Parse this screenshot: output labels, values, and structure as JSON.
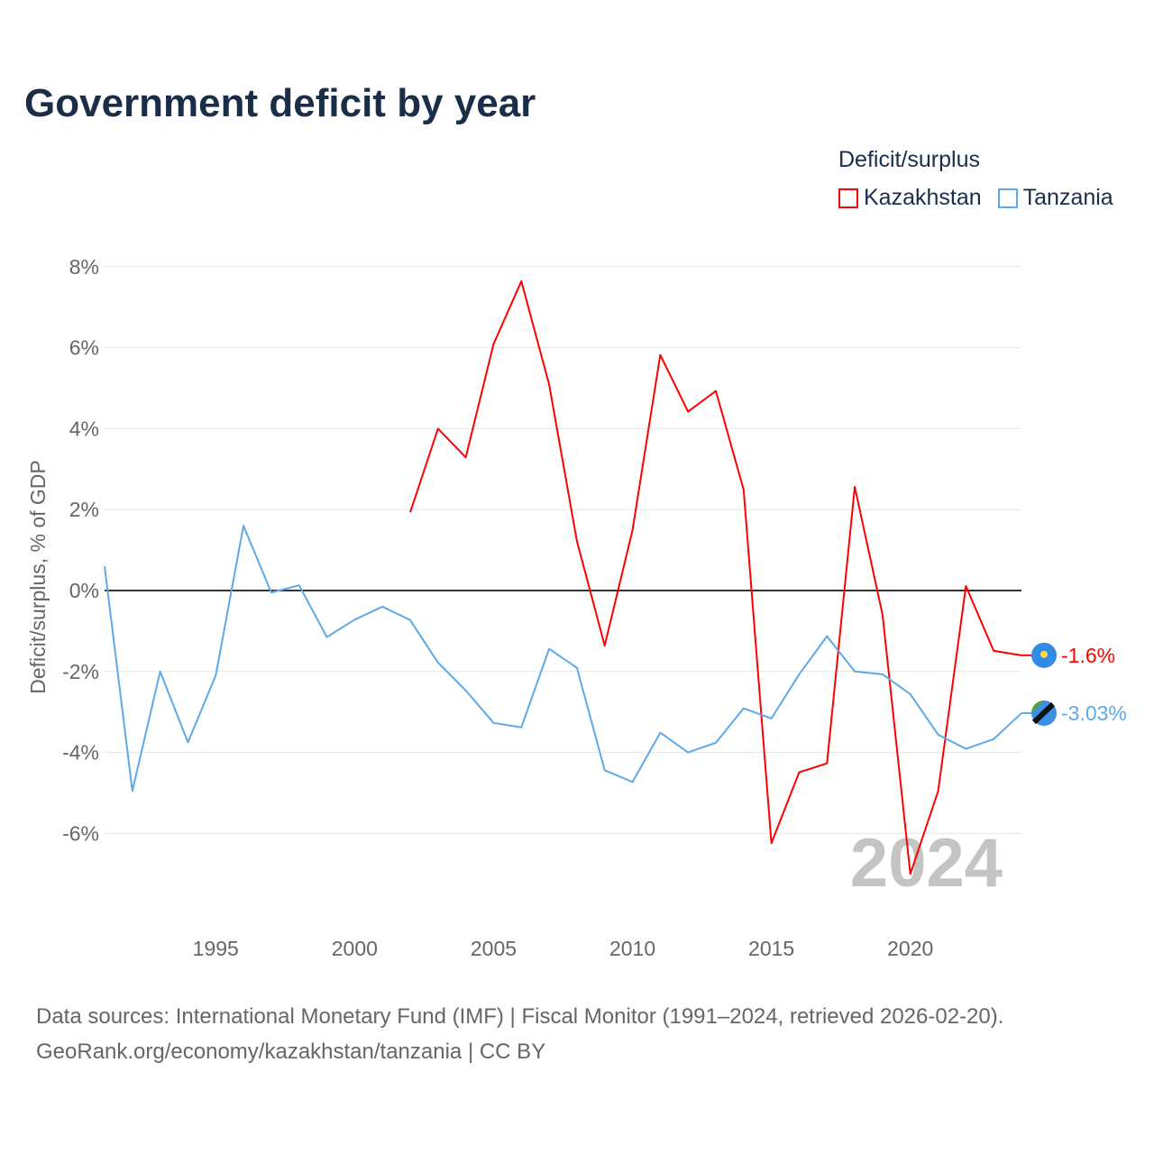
{
  "chart_data": {
    "type": "line",
    "title": "Government deficit by year",
    "ylabel": "Deficit/surplus, % of GDP",
    "xlabel": "",
    "ylim": [
      -8.5,
      8.5
    ],
    "xlim": [
      1991,
      2024
    ],
    "yticks": [
      8,
      6,
      4,
      2,
      0,
      -2,
      -4,
      -6
    ],
    "ytick_labels": [
      "8%",
      "6%",
      "4%",
      "2%",
      "0%",
      "-2%",
      "-4%",
      "-6%"
    ],
    "xticks": [
      1995,
      2000,
      2005,
      2010,
      2015,
      2020
    ],
    "xtick_labels": [
      "1995",
      "2000",
      "2005",
      "2010",
      "2015",
      "2020"
    ],
    "legend_title": "Deficit/surplus",
    "legend_position": "top-right",
    "year_watermark": "2024",
    "series": [
      {
        "name": "Kazakhstan",
        "color": "#ff0000",
        "end_label": "-1.6%",
        "x": [
          2002,
          2003,
          2004,
          2005,
          2006,
          2007,
          2008,
          2009,
          2010,
          2011,
          2012,
          2013,
          2014,
          2015,
          2016,
          2017,
          2018,
          2019,
          2020,
          2021,
          2022,
          2023,
          2024
        ],
        "values": [
          1.93,
          4.0,
          3.29,
          6.09,
          7.64,
          5.09,
          1.22,
          -1.36,
          1.49,
          5.82,
          4.42,
          4.93,
          2.49,
          -6.24,
          -4.49,
          -4.27,
          2.56,
          -0.6,
          -7.0,
          -4.96,
          0.11,
          -1.49,
          -1.6
        ]
      },
      {
        "name": "Tanzania",
        "color": "#5da9e9",
        "end_label": "-3.03%",
        "x": [
          1991,
          1992,
          1993,
          1994,
          1995,
          1996,
          1997,
          1998,
          1999,
          2000,
          2001,
          2002,
          2003,
          2004,
          2005,
          2006,
          2007,
          2008,
          2009,
          2010,
          2011,
          2012,
          2013,
          2014,
          2015,
          2016,
          2017,
          2018,
          2019,
          2020,
          2021,
          2022,
          2023,
          2024
        ],
        "values": [
          0.6,
          -4.95,
          -2.0,
          -3.75,
          -2.1,
          1.6,
          -0.05,
          0.13,
          -1.15,
          -0.72,
          -0.4,
          -0.73,
          -1.78,
          -2.47,
          -3.27,
          -3.38,
          -1.44,
          -1.91,
          -4.44,
          -4.73,
          -3.51,
          -4.0,
          -3.76,
          -2.91,
          -3.16,
          -2.07,
          -1.13,
          -2.0,
          -2.07,
          -2.56,
          -3.56,
          -3.91,
          -3.67,
          -3.03
        ]
      }
    ]
  },
  "source_line1": "Data sources: International Monetary Fund (IMF) | Fiscal Monitor (1991–2024, retrieved 2026-02-20).",
  "source_line2": "GeoRank.org/economy/kazakhstan/tanzania | CC BY"
}
